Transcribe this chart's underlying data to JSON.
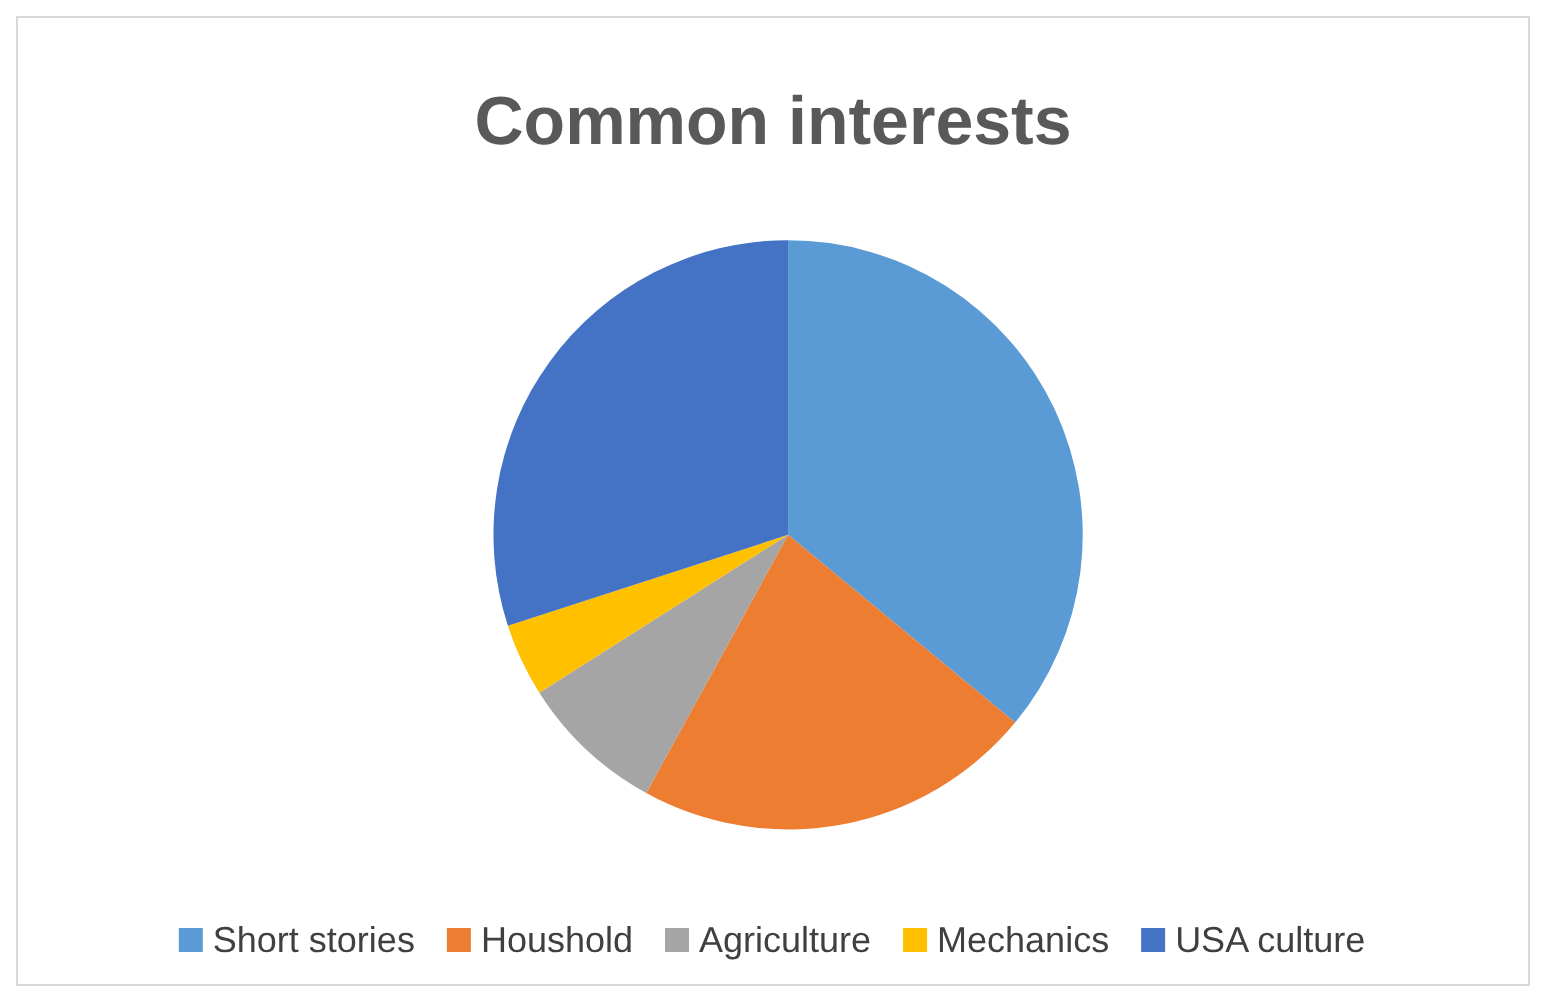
{
  "chart_data": {
    "type": "pie",
    "title": "Common interests",
    "categories": [
      "Short stories",
      "Houshold",
      "Agriculture",
      "Mechanics",
      "USA culture"
    ],
    "values": [
      36,
      22,
      8,
      4,
      30
    ],
    "colors": [
      "#5b9bd5",
      "#ed7d31",
      "#a5a5a5",
      "#ffc000",
      "#4472c4"
    ],
    "legend": "bottom"
  }
}
